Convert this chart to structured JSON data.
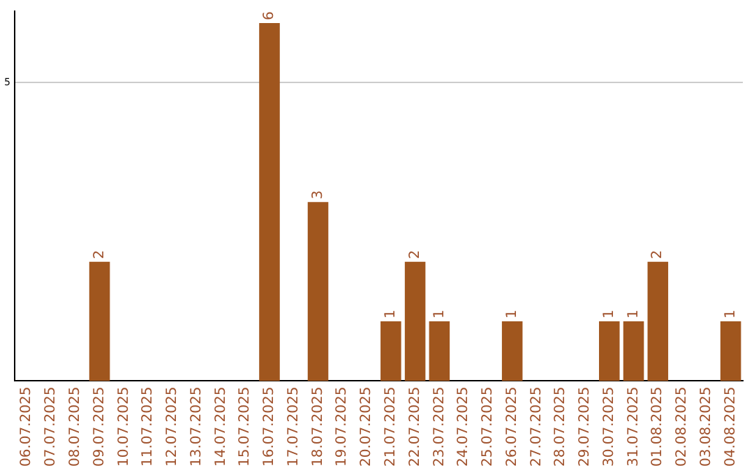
{
  "chart_data": {
    "type": "bar",
    "categories": [
      "06.07.2025",
      "07.07.2025",
      "08.07.2025",
      "09.07.2025",
      "10.07.2025",
      "11.07.2025",
      "12.07.2025",
      "13.07.2025",
      "14.07.2025",
      "15.07.2025",
      "16.07.2025",
      "17.07.2025",
      "18.07.2025",
      "19.07.2025",
      "20.07.2025",
      "21.07.2025",
      "22.07.2025",
      "23.07.2025",
      "24.07.2025",
      "25.07.2025",
      "26.07.2025",
      "27.07.2025",
      "28.07.2025",
      "29.07.2025",
      "30.07.2025",
      "31.07.2025",
      "01.08.2025",
      "02.08.2025",
      "03.08.2025",
      "04.08.2025"
    ],
    "values": [
      0,
      0,
      0,
      2,
      0,
      0,
      0,
      0,
      0,
      0,
      6,
      0,
      3,
      0,
      0,
      1,
      2,
      1,
      0,
      0,
      1,
      0,
      0,
      0,
      1,
      1,
      2,
      0,
      0,
      1
    ],
    "value_labels": [
      null,
      null,
      null,
      "2",
      null,
      null,
      null,
      null,
      null,
      null,
      "6",
      null,
      "3",
      null,
      null,
      "1",
      "2",
      "1",
      null,
      null,
      "1",
      null,
      null,
      null,
      "1",
      "1",
      "2",
      null,
      null,
      "1"
    ],
    "color": "#a0561e",
    "ylim": [
      0,
      6.2
    ],
    "yticks": [
      5
    ],
    "grid": "y",
    "legend": false
  }
}
